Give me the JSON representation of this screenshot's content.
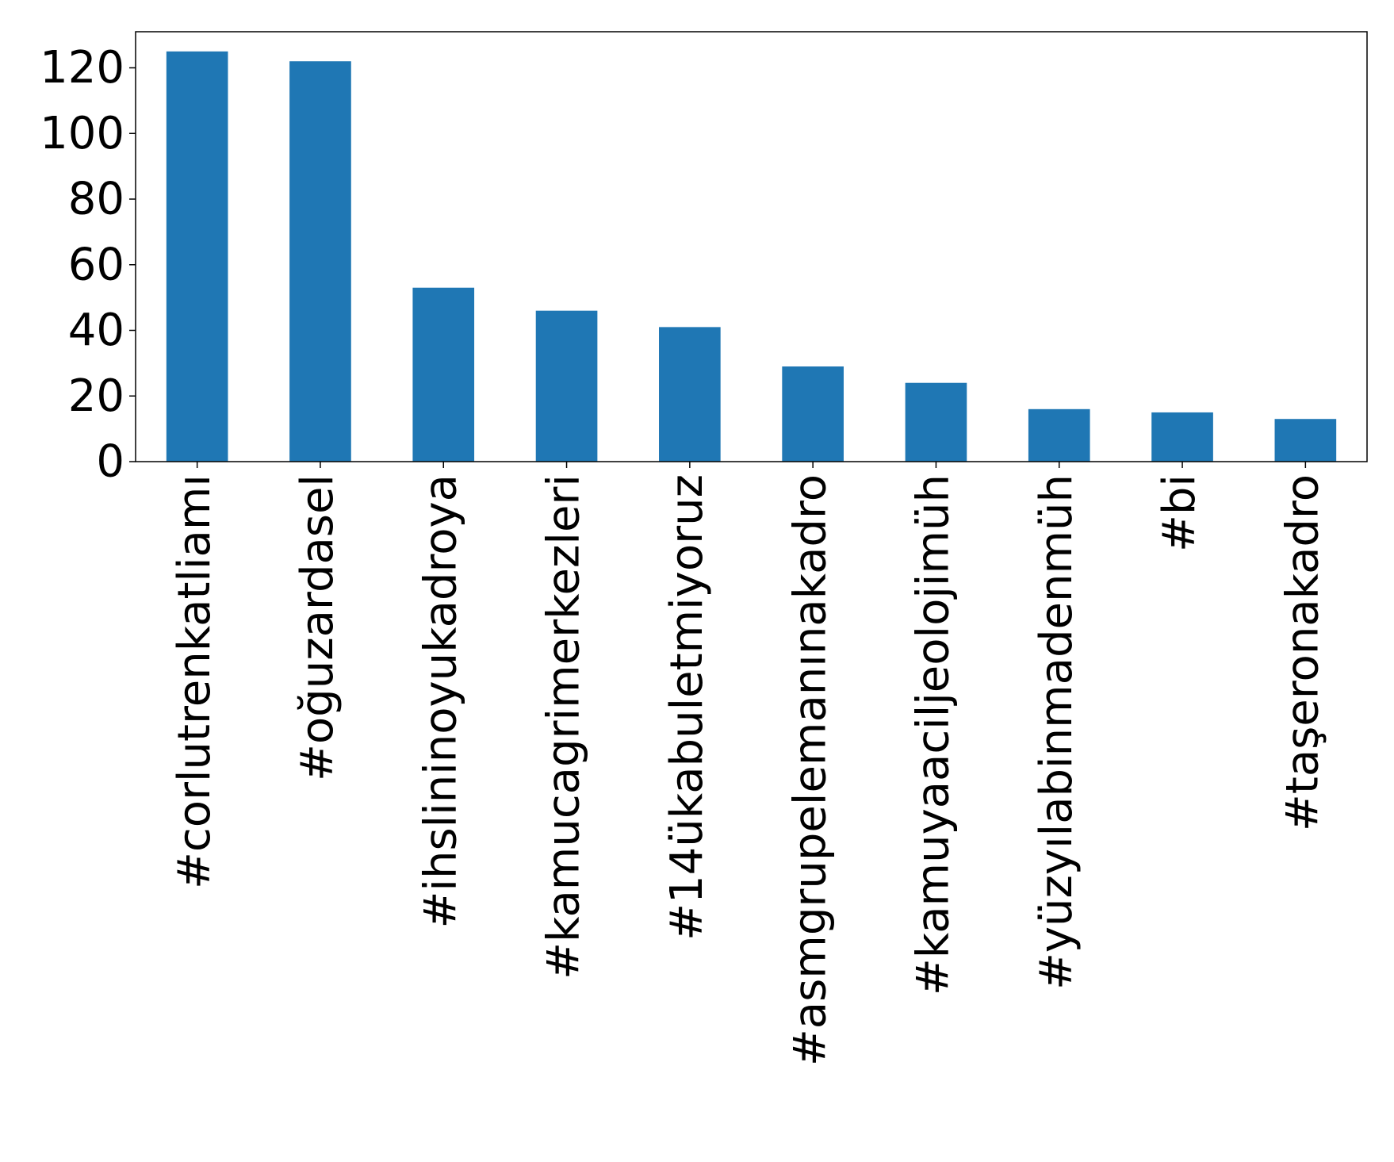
{
  "chart_data": {
    "type": "bar",
    "title": "",
    "xlabel": "",
    "ylabel": "",
    "categories": [
      "#corlutrenkatliamı",
      "#oğuzardasel",
      "#ihslininoyukadroya",
      "#kamucagrimerkezleri",
      "#14ükabuletmiyoruz",
      "#asmgrupelemanınakadro",
      "#kamuyaaciljeolojimüh",
      "#yüzyılabinmadenmüh",
      "#bi",
      "#taşeronakadro"
    ],
    "values": [
      125,
      122,
      53,
      46,
      41,
      29,
      24,
      16,
      15,
      13
    ],
    "ylim": [
      0,
      131
    ],
    "yticks": [
      "0",
      "20",
      "40",
      "60",
      "80",
      "100",
      "120"
    ],
    "grid": false,
    "legend": "none",
    "colors": {
      "bar": "#1f77b4",
      "axis": "#000000",
      "background": "#ffffff"
    }
  }
}
